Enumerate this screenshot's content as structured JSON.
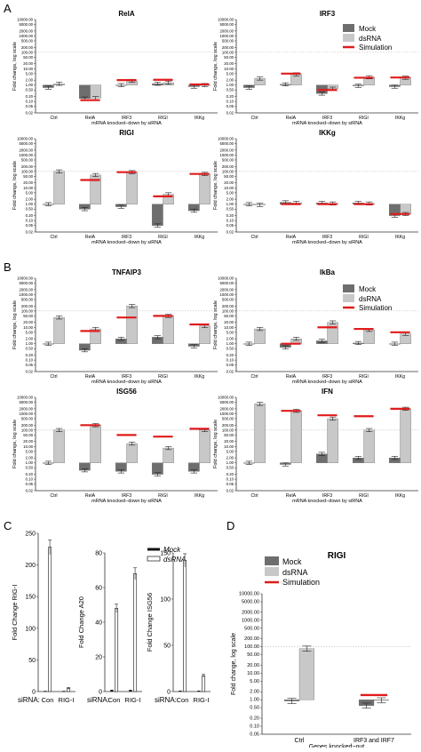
{
  "figure": {
    "panel_letters": [
      "A",
      "B",
      "C",
      "D"
    ],
    "common": {
      "log_ticks": [
        "10000.00",
        "5000.00",
        "2000.00",
        "1000.00",
        "500.00",
        "200.00",
        "100.00",
        "50.00",
        "20.00",
        "10.00",
        "5.00",
        "2.00",
        "1.00",
        "0.50",
        "0.20",
        "0.10",
        "0.05",
        "0.02"
      ],
      "ylabel": "Fold change, log scale",
      "xlabel_sirna": "mRNA knocked−down by siRNA",
      "categories": [
        "Ctrl",
        "RelA",
        "IRF3",
        "RIGI",
        "IKKg"
      ]
    },
    "legend": {
      "mock": "Mock",
      "dsrna": "dsRNA",
      "simulation": "Simulation"
    },
    "colors": {
      "mock": "#6e6e6e",
      "dsrna": "#c8c8c8",
      "simulation": "#e01b1b",
      "axis": "#333333"
    },
    "panel_c": {
      "siRNA_label": "siRNA:",
      "groups": [
        "Con",
        "RIG-I"
      ],
      "legend": {
        "mock": "Mock",
        "dsrna": "dsRNA"
      }
    },
    "panel_d": {
      "title": "RIGI",
      "xlabel": "Genes knocked−out",
      "ylabel": "Fold change, log scale",
      "ticks": [
        "10000.00",
        "5000.00",
        "2000.00",
        "1000.00",
        "500.00",
        "200.00",
        "100.00",
        "50.00",
        "20.00",
        "10.00",
        "5.00",
        "2.00",
        "1.00",
        "0.50",
        "0.20",
        "0.10",
        "0.05"
      ]
    }
  },
  "chart_data": [
    {
      "id": "A1",
      "type": "bar",
      "title": "RelA",
      "xlabel": "mRNA knocked−down by siRNA",
      "ylabel": "Fold change, log scale",
      "scale": "log",
      "ylim": [
        0.02,
        10000
      ],
      "categories": [
        "Ctrl",
        "RelA",
        "IRF3",
        "RIGI",
        "IKKg"
      ],
      "series": [
        {
          "name": "Mock",
          "values": [
            0.7,
            0.15,
            1.0,
            1.2,
            0.8
          ]
        },
        {
          "name": "dsRNA",
          "values": [
            1.2,
            0.16,
            1.8,
            1.4,
            1.0
          ]
        },
        {
          "name": "Simulation",
          "values": [
            null,
            0.12,
            2.0,
            2.1,
            1.1
          ]
        }
      ]
    },
    {
      "id": "A2",
      "type": "bar",
      "title": "IRF3",
      "xlabel": "mRNA knocked−down by siRNA",
      "ylabel": "Fold change, log scale",
      "scale": "log",
      "ylim": [
        0.02,
        10000
      ],
      "categories": [
        "Ctrl",
        "RelA",
        "IRF3",
        "RIGI",
        "IKKg"
      ],
      "series": [
        {
          "name": "Mock",
          "values": [
            0.7,
            1.1,
            0.3,
            0.9,
            0.8
          ]
        },
        {
          "name": "dsRNA",
          "values": [
            2.5,
            4.5,
            0.6,
            3.0,
            2.8
          ]
        },
        {
          "name": "Simulation",
          "values": [
            null,
            5.0,
            0.5,
            2.8,
            2.9
          ]
        }
      ]
    },
    {
      "id": "A3",
      "type": "bar",
      "title": "RIGI",
      "xlabel": "mRNA knocked−down by siRNA",
      "ylabel": "Fold change, log scale",
      "scale": "log",
      "ylim": [
        0.02,
        10000
      ],
      "categories": [
        "Ctrl",
        "RelA",
        "IRF3",
        "RIGI",
        "IKKg"
      ],
      "series": [
        {
          "name": "Mock",
          "values": [
            1.0,
            0.5,
            0.7,
            0.05,
            0.4
          ]
        },
        {
          "name": "dsRNA",
          "values": [
            100,
            60,
            90,
            4.0,
            70
          ]
        },
        {
          "name": "Simulation",
          "values": [
            null,
            30,
            90,
            3.0,
            70
          ]
        }
      ]
    },
    {
      "id": "A4",
      "type": "bar",
      "title": "IKKg",
      "xlabel": "mRNA knocked−down by siRNA",
      "ylabel": "Fold change, log scale",
      "scale": "log",
      "ylim": [
        0.02,
        10000
      ],
      "categories": [
        "Ctrl",
        "RelA",
        "IRF3",
        "RIGI",
        "IKKg"
      ],
      "series": [
        {
          "name": "Mock",
          "values": [
            1.0,
            1.3,
            1.2,
            1.2,
            0.2
          ]
        },
        {
          "name": "dsRNA",
          "values": [
            0.9,
            1.2,
            1.1,
            1.1,
            0.25
          ]
        },
        {
          "name": "Simulation",
          "values": [
            null,
            1.0,
            1.0,
            1.0,
            0.25
          ]
        }
      ]
    },
    {
      "id": "B1",
      "type": "bar",
      "title": "TNFAIP3",
      "xlabel": "mRNA knocked−down by siRNA",
      "ylabel": "Fold change, log scale",
      "scale": "log",
      "ylim": [
        0.02,
        10000
      ],
      "categories": [
        "Ctrl",
        "RelA",
        "IRF3",
        "RIGI",
        "IKKg"
      ],
      "series": [
        {
          "name": "Mock",
          "values": [
            1.0,
            0.4,
            2.0,
            2.5,
            0.7
          ]
        },
        {
          "name": "dsRNA",
          "values": [
            40,
            8,
            200,
            50,
            12
          ]
        },
        {
          "name": "Simulation",
          "values": [
            null,
            6,
            40,
            50,
            15
          ]
        }
      ]
    },
    {
      "id": "B2",
      "type": "bar",
      "title": "IkBa",
      "xlabel": "mRNA knocked−down by siRNA",
      "ylabel": "Fold change, log scale",
      "scale": "log",
      "ylim": [
        0.02,
        10000
      ],
      "categories": [
        "Ctrl",
        "RelA",
        "IRF3",
        "RIGI",
        "IKKg"
      ],
      "series": [
        {
          "name": "Mock",
          "values": [
            1.0,
            0.6,
            1.5,
            1.1,
            1.0
          ]
        },
        {
          "name": "dsRNA",
          "values": [
            8,
            2.0,
            20,
            7,
            4
          ]
        },
        {
          "name": "Simulation",
          "values": [
            null,
            1.0,
            10,
            8,
            5
          ]
        }
      ]
    },
    {
      "id": "B3",
      "type": "bar",
      "title": "ISG56",
      "xlabel": "mRNA knocked−down by siRNA",
      "ylabel": "Fold change, log scale",
      "scale": "log",
      "ylim": [
        0.02,
        10000
      ],
      "categories": [
        "Ctrl",
        "RelA",
        "IRF3",
        "RIGI",
        "IKKg"
      ],
      "series": [
        {
          "name": "Mock",
          "values": [
            1.0,
            0.35,
            0.3,
            0.2,
            0.3
          ]
        },
        {
          "name": "dsRNA",
          "values": [
            100,
            200,
            15,
            8,
            100
          ]
        },
        {
          "name": "Simulation",
          "values": [
            null,
            200,
            50,
            40,
            120
          ]
        }
      ]
    },
    {
      "id": "B4",
      "type": "bar",
      "title": "IFN",
      "xlabel": "mRNA knocked−down by siRNA",
      "ylabel": "Fold change, log scale",
      "scale": "log",
      "ylim": [
        0.02,
        10000
      ],
      "categories": [
        "Ctrl",
        "RelA",
        "IRF3",
        "RIGI",
        "IKKg"
      ],
      "series": [
        {
          "name": "Mock",
          "values": [
            1.0,
            0.8,
            3.5,
            2.0,
            2.0
          ]
        },
        {
          "name": "dsRNA",
          "values": [
            4000,
            1500,
            500,
            100,
            2000
          ]
        },
        {
          "name": "Simulation",
          "values": [
            null,
            1500,
            800,
            700,
            2000
          ]
        }
      ]
    },
    {
      "id": "C1",
      "type": "bar",
      "ylabel": "Fold Change RIG-I",
      "ylim": [
        0,
        250
      ],
      "yticks": [
        0,
        50,
        100,
        150,
        200,
        250
      ],
      "categories": [
        "Con",
        "RIG-I"
      ],
      "series": [
        {
          "name": "Mock",
          "values": [
            1,
            1
          ]
        },
        {
          "name": "dsRNA",
          "values": [
            228,
            5
          ]
        }
      ]
    },
    {
      "id": "C2",
      "type": "bar",
      "ylabel": "Fold Change A20",
      "ylim": [
        0,
        80
      ],
      "yticks": [
        0,
        20,
        40,
        60,
        80
      ],
      "categories": [
        "Con",
        "RIG-I"
      ],
      "series": [
        {
          "name": "Mock",
          "values": [
            1,
            1
          ]
        },
        {
          "name": "dsRNA",
          "values": [
            48,
            68
          ]
        }
      ]
    },
    {
      "id": "C3",
      "type": "bar",
      "ylabel": "Fold Change ISG56",
      "ylim": [
        0,
        150
      ],
      "yticks": [
        0,
        50,
        100,
        150
      ],
      "categories": [
        "Con",
        "RIG-I"
      ],
      "series": [
        {
          "name": "Mock",
          "values": [
            1,
            1
          ]
        },
        {
          "name": "dsRNA",
          "values": [
            142,
            17
          ]
        }
      ]
    },
    {
      "id": "D",
      "type": "bar",
      "title": "RIGI",
      "xlabel": "Genes knocked−out",
      "ylabel": "Fold change, log scale",
      "scale": "log",
      "ylim": [
        0.05,
        10000
      ],
      "categories": [
        "Ctrl",
        "IRF3 and IRF7"
      ],
      "series": [
        {
          "name": "Mock",
          "values": [
            0.9,
            0.6
          ]
        },
        {
          "name": "dsRNA",
          "values": [
            85,
            0.95
          ]
        },
        {
          "name": "Simulation",
          "values": [
            null,
            1.5
          ]
        }
      ]
    }
  ]
}
